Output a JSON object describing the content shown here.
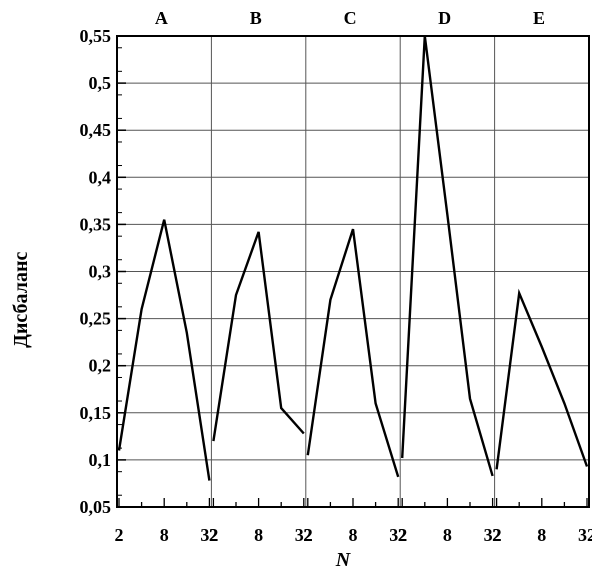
{
  "chart_data": {
    "type": "line",
    "xlabel": "N",
    "ylabel": "Дисбаланс",
    "ylim": [
      0.05,
      0.55
    ],
    "y_ticks": [
      "0,05",
      "0,1",
      "0,15",
      "0,2",
      "0,25",
      "0,3",
      "0,35",
      "0,4",
      "0,45",
      "0,5",
      "0,55"
    ],
    "x_scale": "log2",
    "x_range": [
      2,
      32
    ],
    "x_tick_labels": [
      "2",
      "8",
      "32"
    ],
    "grid": true,
    "panels": [
      {
        "label": "A",
        "x": [
          2,
          4,
          8,
          16,
          32
        ],
        "y": [
          0.11,
          0.26,
          0.355,
          0.235,
          0.078
        ]
      },
      {
        "label": "B",
        "x": [
          2,
          4,
          8,
          16,
          32
        ],
        "y": [
          0.12,
          0.275,
          0.342,
          0.155,
          0.128
        ]
      },
      {
        "label": "C",
        "x": [
          2,
          4,
          8,
          16,
          32
        ],
        "y": [
          0.105,
          0.27,
          0.345,
          0.16,
          0.082
        ]
      },
      {
        "label": "D",
        "x": [
          2,
          4,
          8,
          16,
          32
        ],
        "y": [
          0.102,
          0.55,
          0.36,
          0.165,
          0.083
        ]
      },
      {
        "label": "E",
        "x": [
          2,
          4,
          8,
          16,
          32
        ],
        "y": [
          0.09,
          0.277,
          0.22,
          0.16,
          0.093
        ]
      }
    ],
    "colors": {
      "line": "#000000",
      "grid": "#555555",
      "frame": "#000000"
    }
  }
}
